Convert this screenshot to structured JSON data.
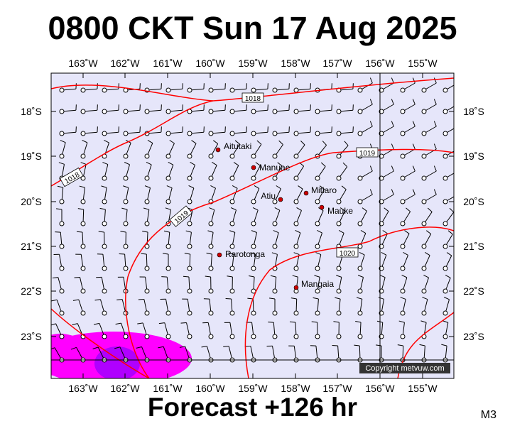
{
  "title": "0800 CKT Sun 17 Aug 2025",
  "footer": "Forecast +126 hr",
  "map_code": "M3",
  "copyright": "Copyright metvuw.com",
  "colors": {
    "ocean": "#e6e6fa",
    "isobar": "#ff0000",
    "rain_heavy": "#ff00ff",
    "rain_core": "#b000ff",
    "place_dot": "#cc0000",
    "wind_barb": "#000000"
  },
  "x_axis_labels": [
    "163˚W",
    "162˚W",
    "161˚W",
    "160˚W",
    "159˚W",
    "158˚W",
    "157˚W",
    "156˚W",
    "155˚W"
  ],
  "y_axis_labels": [
    "18˚S",
    "19˚S",
    "20˚S",
    "21˚S",
    "22˚S",
    "23˚S"
  ],
  "places": [
    {
      "name": "Aitutaki",
      "marker": true
    },
    {
      "name": "Manuae",
      "marker": true
    },
    {
      "name": "Mitiaro",
      "marker": true
    },
    {
      "name": "Atiu",
      "marker": true
    },
    {
      "name": "Mauke",
      "marker": true
    },
    {
      "name": "Rarotonga",
      "marker": true
    },
    {
      "name": "Mangaia",
      "marker": true
    }
  ],
  "isobars": [
    {
      "value": "1018"
    },
    {
      "value": "1018"
    },
    {
      "value": "1019"
    },
    {
      "value": "1019"
    },
    {
      "value": "1020"
    }
  ],
  "wind_barbs": {
    "icon": "wind-barb-icon",
    "direction": "from south-east, trade winds"
  },
  "rain_areas": [
    {
      "icon": "rain-area-icon",
      "position": "bottom-left"
    }
  ]
}
